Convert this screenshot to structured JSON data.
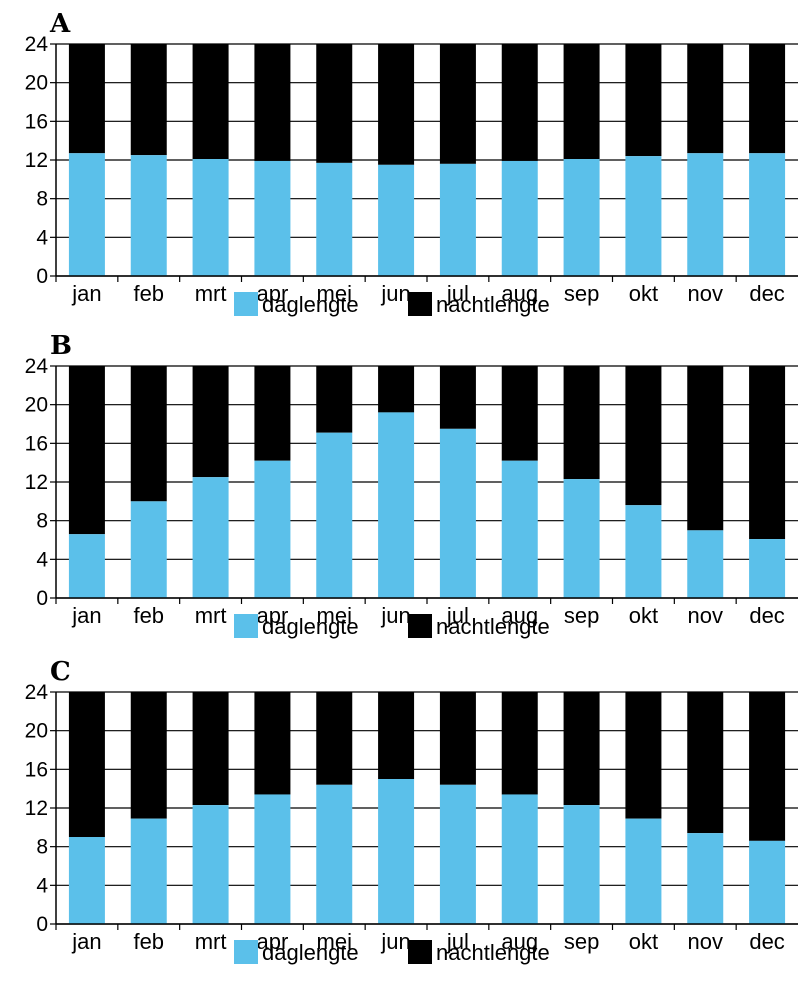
{
  "colors": {
    "day": "#5bc0ea",
    "night": "#000000"
  },
  "chart_data": [
    {
      "type": "bar",
      "panel": "A",
      "stacked": true,
      "categories": [
        "jan",
        "feb",
        "mrt",
        "apr",
        "mei",
        "jun",
        "jul",
        "aug",
        "sep",
        "okt",
        "nov",
        "dec"
      ],
      "ylim": [
        0,
        24
      ],
      "yticks": [
        0,
        4,
        8,
        12,
        16,
        20,
        24
      ],
      "series": [
        {
          "name": "daglengte",
          "values": [
            12.7,
            12.5,
            12.1,
            11.9,
            11.7,
            11.5,
            11.6,
            11.9,
            12.1,
            12.4,
            12.7,
            12.7
          ]
        },
        {
          "name": "nachtlengte",
          "values": [
            11.3,
            11.5,
            11.9,
            12.1,
            12.3,
            12.5,
            12.4,
            12.1,
            11.9,
            11.6,
            11.3,
            11.3
          ]
        }
      ],
      "legend": "bottom"
    },
    {
      "type": "bar",
      "panel": "B",
      "stacked": true,
      "categories": [
        "jan",
        "feb",
        "mrt",
        "apr",
        "mei",
        "jun",
        "jul",
        "aug",
        "sep",
        "okt",
        "nov",
        "dec"
      ],
      "ylim": [
        0,
        24
      ],
      "yticks": [
        0,
        4,
        8,
        12,
        16,
        20,
        24
      ],
      "series": [
        {
          "name": "daglengte",
          "values": [
            6.6,
            10.0,
            12.5,
            14.2,
            17.1,
            19.2,
            17.5,
            14.2,
            12.3,
            9.6,
            7.0,
            6.1
          ]
        },
        {
          "name": "nachtlengte",
          "values": [
            17.4,
            14.0,
            11.5,
            9.8,
            6.9,
            4.8,
            6.5,
            9.8,
            11.7,
            14.4,
            17.0,
            17.9
          ]
        }
      ],
      "legend": "bottom"
    },
    {
      "type": "bar",
      "panel": "C",
      "stacked": true,
      "categories": [
        "jan",
        "feb",
        "mrt",
        "apr",
        "mei",
        "jun",
        "jul",
        "aug",
        "sep",
        "okt",
        "nov",
        "dec"
      ],
      "ylim": [
        0,
        24
      ],
      "yticks": [
        0,
        4,
        8,
        12,
        16,
        20,
        24
      ],
      "series": [
        {
          "name": "daglengte",
          "values": [
            9.0,
            10.9,
            12.3,
            13.4,
            14.4,
            15.0,
            14.4,
            13.4,
            12.3,
            10.9,
            9.4,
            8.6
          ]
        },
        {
          "name": "nachtlengte",
          "values": [
            15.0,
            13.1,
            11.7,
            10.6,
            9.6,
            9.0,
            9.6,
            10.6,
            11.7,
            13.1,
            14.6,
            15.4
          ]
        }
      ],
      "legend": "bottom"
    }
  ]
}
